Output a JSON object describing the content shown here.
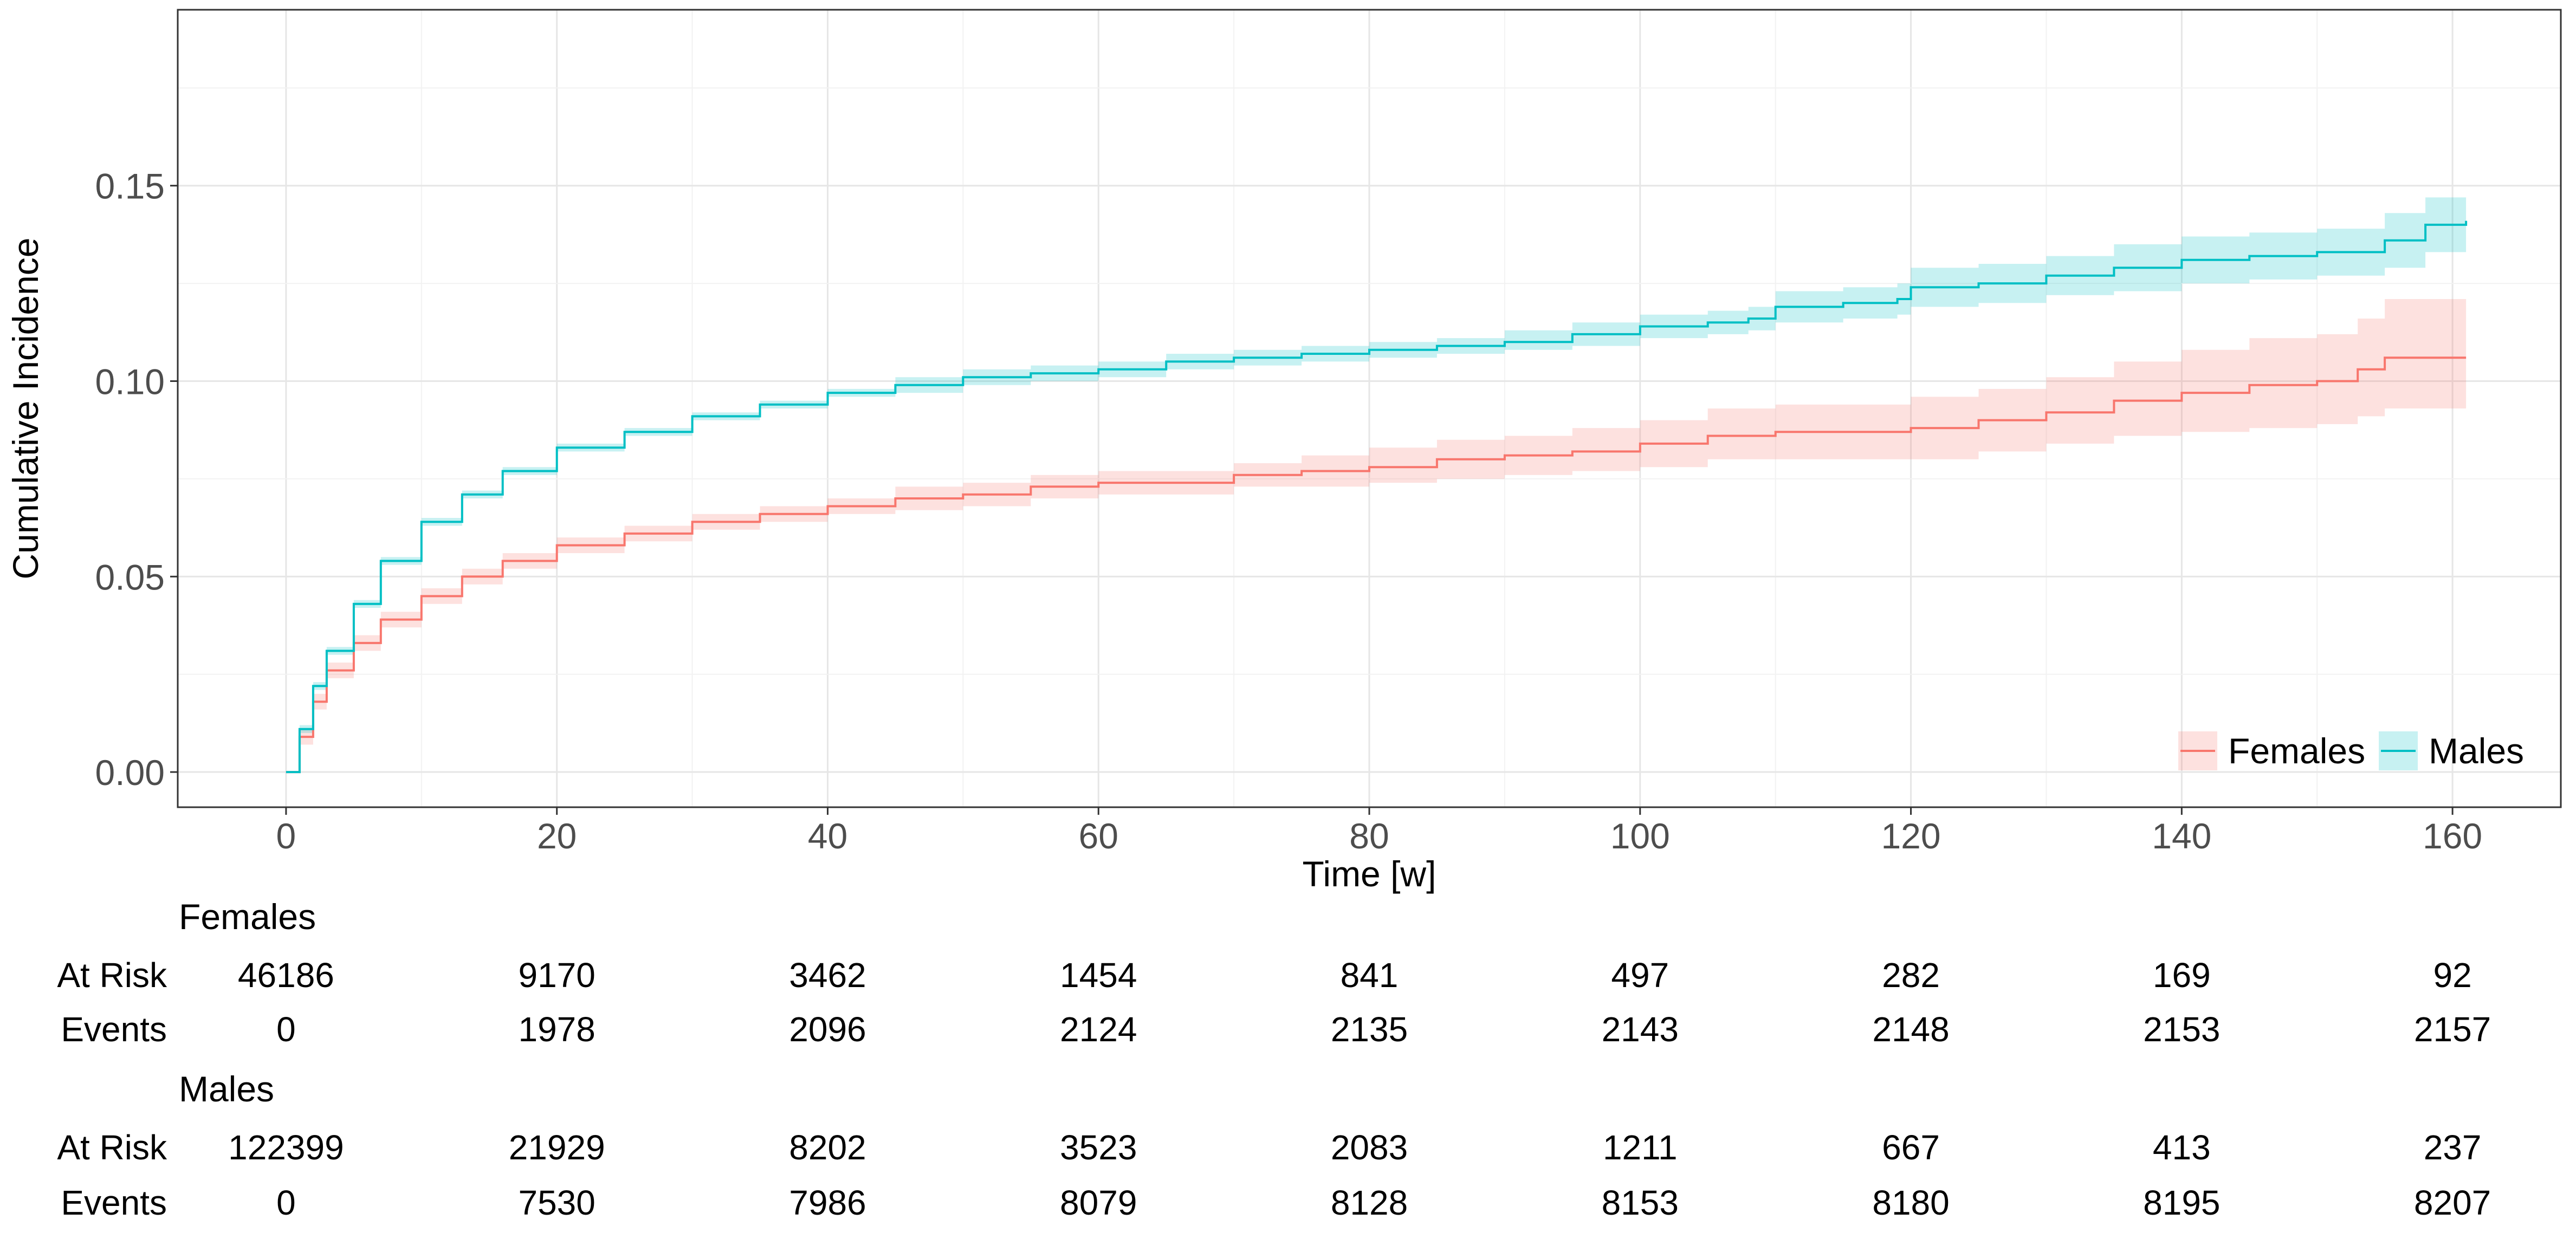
{
  "chart_data": {
    "type": "line",
    "subtype": "step cumulative incidence with confidence bands",
    "title": "",
    "xlabel": "Time [w]",
    "ylabel": "Cumulative Incidence",
    "xlim": [
      -8,
      168
    ],
    "ylim": [
      -0.009,
      0.195
    ],
    "x_ticks": [
      0,
      20,
      40,
      60,
      80,
      100,
      120,
      140,
      160
    ],
    "x_tick_labels": [
      "0",
      "20",
      "40",
      "60",
      "80",
      "100",
      "120",
      "140",
      "160"
    ],
    "y_ticks": [
      0.0,
      0.05,
      0.1,
      0.15
    ],
    "y_tick_labels": [
      "0.00",
      "0.05",
      "0.10",
      "0.15"
    ],
    "grid": true,
    "legend_position": "bottom-right",
    "series": [
      {
        "name": "Females",
        "color": "#F8766D",
        "band_color": "#F8766D",
        "x": [
          0,
          1,
          2,
          3,
          5,
          7,
          10,
          13,
          16,
          20,
          25,
          30,
          35,
          40,
          45,
          50,
          55,
          60,
          65,
          70,
          75,
          80,
          85,
          90,
          95,
          100,
          105,
          110,
          115,
          120,
          125,
          130,
          135,
          140,
          145,
          150,
          153,
          155,
          161
        ],
        "values": [
          0,
          0.009,
          0.018,
          0.026,
          0.033,
          0.039,
          0.045,
          0.05,
          0.054,
          0.058,
          0.061,
          0.064,
          0.066,
          0.068,
          0.07,
          0.071,
          0.073,
          0.074,
          0.074,
          0.076,
          0.077,
          0.078,
          0.08,
          0.081,
          0.082,
          0.084,
          0.086,
          0.087,
          0.087,
          0.088,
          0.09,
          0.092,
          0.095,
          0.097,
          0.099,
          0.1,
          0.103,
          0.106,
          0.106
        ],
        "lower": [
          0,
          0.007,
          0.016,
          0.024,
          0.031,
          0.037,
          0.043,
          0.048,
          0.052,
          0.056,
          0.059,
          0.062,
          0.064,
          0.066,
          0.067,
          0.068,
          0.07,
          0.071,
          0.071,
          0.073,
          0.073,
          0.074,
          0.075,
          0.076,
          0.077,
          0.078,
          0.08,
          0.08,
          0.08,
          0.08,
          0.082,
          0.084,
          0.086,
          0.087,
          0.088,
          0.089,
          0.091,
          0.093,
          0.093
        ],
        "upper": [
          0,
          0.011,
          0.02,
          0.028,
          0.035,
          0.041,
          0.047,
          0.052,
          0.056,
          0.06,
          0.063,
          0.066,
          0.068,
          0.07,
          0.073,
          0.074,
          0.076,
          0.077,
          0.077,
          0.079,
          0.081,
          0.083,
          0.085,
          0.086,
          0.088,
          0.09,
          0.093,
          0.094,
          0.094,
          0.096,
          0.098,
          0.101,
          0.105,
          0.108,
          0.111,
          0.112,
          0.116,
          0.121,
          0.121
        ]
      },
      {
        "name": "Males",
        "color": "#00BFC4",
        "band_color": "#00BFC4",
        "x": [
          0,
          1,
          2,
          3,
          5,
          7,
          10,
          13,
          16,
          20,
          25,
          30,
          35,
          40,
          45,
          50,
          55,
          60,
          65,
          70,
          75,
          80,
          85,
          90,
          95,
          100,
          105,
          108,
          110,
          115,
          119,
          120,
          125,
          130,
          135,
          140,
          145,
          150,
          155,
          158,
          161
        ],
        "values": [
          0,
          0.011,
          0.022,
          0.031,
          0.043,
          0.054,
          0.064,
          0.071,
          0.077,
          0.083,
          0.087,
          0.091,
          0.094,
          0.097,
          0.099,
          0.101,
          0.102,
          0.103,
          0.105,
          0.106,
          0.107,
          0.108,
          0.109,
          0.11,
          0.112,
          0.114,
          0.115,
          0.116,
          0.119,
          0.12,
          0.121,
          0.124,
          0.125,
          0.127,
          0.129,
          0.131,
          0.132,
          0.133,
          0.136,
          0.14,
          0.141
        ],
        "lower": [
          0,
          0.01,
          0.021,
          0.03,
          0.042,
          0.053,
          0.063,
          0.07,
          0.076,
          0.082,
          0.086,
          0.09,
          0.093,
          0.096,
          0.097,
          0.099,
          0.1,
          0.101,
          0.103,
          0.104,
          0.105,
          0.106,
          0.107,
          0.108,
          0.109,
          0.111,
          0.112,
          0.113,
          0.115,
          0.116,
          0.117,
          0.119,
          0.12,
          0.122,
          0.123,
          0.125,
          0.126,
          0.127,
          0.129,
          0.133,
          0.134
        ],
        "upper": [
          0,
          0.012,
          0.023,
          0.032,
          0.044,
          0.055,
          0.065,
          0.072,
          0.078,
          0.084,
          0.088,
          0.092,
          0.095,
          0.098,
          0.101,
          0.103,
          0.104,
          0.105,
          0.107,
          0.108,
          0.109,
          0.11,
          0.111,
          0.113,
          0.115,
          0.117,
          0.118,
          0.119,
          0.123,
          0.124,
          0.125,
          0.129,
          0.13,
          0.132,
          0.135,
          0.137,
          0.138,
          0.139,
          0.143,
          0.147,
          0.149
        ]
      }
    ],
    "risk_table": {
      "times": [
        0,
        20,
        40,
        60,
        80,
        100,
        120,
        140,
        160
      ],
      "row_labels": {
        "at_risk": "At Risk",
        "events": "Events"
      },
      "groups": [
        {
          "name": "Females",
          "at_risk": [
            "46186",
            "9170",
            "3462",
            "1454",
            "841",
            "497",
            "282",
            "169",
            "92"
          ],
          "events": [
            "0",
            "1978",
            "2096",
            "2124",
            "2135",
            "2143",
            "2148",
            "2153",
            "2157"
          ]
        },
        {
          "name": "Males",
          "at_risk": [
            "122399",
            "21929",
            "8202",
            "3523",
            "2083",
            "1211",
            "667",
            "413",
            "237"
          ],
          "events": [
            "0",
            "7530",
            "7986",
            "8079",
            "8128",
            "8153",
            "8180",
            "8195",
            "8207"
          ]
        }
      ]
    }
  }
}
